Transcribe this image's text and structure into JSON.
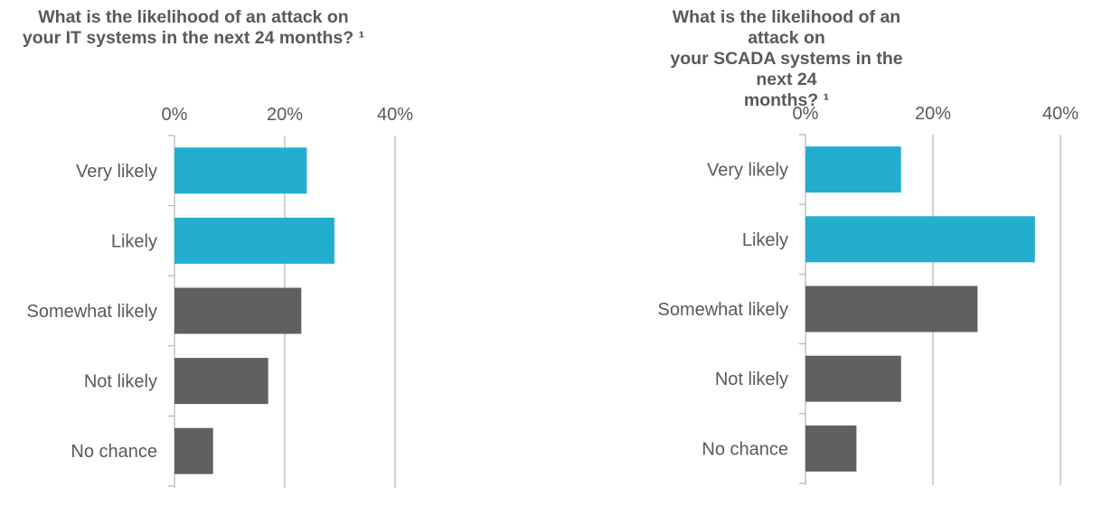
{
  "colors": {
    "highlight": "#23AECF",
    "neutral": "#5F6062",
    "gridline": "#A6A6A6",
    "text": "#595959"
  },
  "chart_data": [
    {
      "type": "bar",
      "orientation": "horizontal",
      "title_lines": [
        "What is the likelihood of an attack on",
        "your IT systems in the next 24 months? ¹"
      ],
      "categories": [
        "Very likely",
        "Likely",
        "Somewhat likely",
        "Not likely",
        "No chance"
      ],
      "values": [
        24,
        29,
        23,
        17,
        7
      ],
      "bar_colors": [
        "highlight",
        "highlight",
        "neutral",
        "neutral",
        "neutral"
      ],
      "xlim": [
        0,
        40
      ],
      "xticks": [
        0,
        20,
        40
      ],
      "xtick_labels": [
        "0%",
        "20%",
        "40%"
      ],
      "x_axis_position": "top",
      "grid": true,
      "unit": "%"
    },
    {
      "type": "bar",
      "orientation": "horizontal",
      "title_lines": [
        "What is the likelihood of an attack on",
        "your SCADA systems in the next 24",
        "months? ¹"
      ],
      "categories": [
        "Very likely",
        "Likely",
        "Somewhat likely",
        "Not likely",
        "No chance"
      ],
      "values": [
        15,
        36,
        27,
        15,
        8
      ],
      "bar_colors": [
        "highlight",
        "highlight",
        "neutral",
        "neutral",
        "neutral"
      ],
      "xlim": [
        0,
        40
      ],
      "xticks": [
        0,
        20,
        40
      ],
      "xtick_labels": [
        "0%",
        "20%",
        "40%"
      ],
      "x_axis_position": "top",
      "grid": true,
      "unit": "%"
    }
  ]
}
